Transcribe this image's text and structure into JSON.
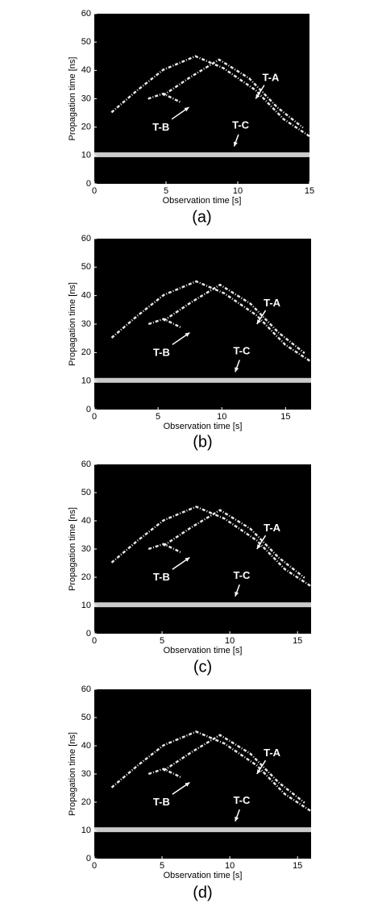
{
  "chart_data": [
    {
      "type": "image",
      "xlabel": "Observation time [s]",
      "ylabel": "Propagation time [ns]",
      "xlim": [
        0,
        15
      ],
      "ylim": [
        0,
        60
      ],
      "xticks": [
        0,
        5,
        10,
        15
      ],
      "yticks": [
        0,
        10,
        20,
        30,
        40,
        50,
        60
      ],
      "annotations": [
        "T-A",
        "T-B",
        "T-C"
      ],
      "caption": "(a)"
    },
    {
      "type": "image",
      "xlabel": "Observation time [s]",
      "ylabel": "Propagation time [ns]",
      "xlim": [
        0,
        17
      ],
      "ylim": [
        0,
        60
      ],
      "xticks": [
        0,
        5,
        10,
        15
      ],
      "yticks": [
        0,
        10,
        20,
        30,
        40,
        50,
        60
      ],
      "annotations": [
        "T-A",
        "T-B",
        "T-C"
      ],
      "caption": "(b)"
    },
    {
      "type": "image",
      "xlabel": "Observation time [s]",
      "ylabel": "Propagation time [ns]",
      "xlim": [
        0,
        16
      ],
      "ylim": [
        0,
        60
      ],
      "xticks": [
        0,
        5,
        10,
        15
      ],
      "yticks": [
        0,
        10,
        20,
        30,
        40,
        50,
        60
      ],
      "annotations": [
        "T-A",
        "T-B",
        "T-C"
      ],
      "caption": "(c)"
    },
    {
      "type": "image",
      "xlabel": "Observation time [s]",
      "ylabel": "Propagation time [ns]",
      "xlim": [
        0,
        16
      ],
      "ylim": [
        0,
        60
      ],
      "xticks": [
        0,
        5,
        10,
        15
      ],
      "yticks": [
        0,
        10,
        20,
        30,
        40,
        50,
        60
      ],
      "annotations": [
        "T-A",
        "T-B",
        "T-C"
      ],
      "caption": "(d)"
    }
  ]
}
